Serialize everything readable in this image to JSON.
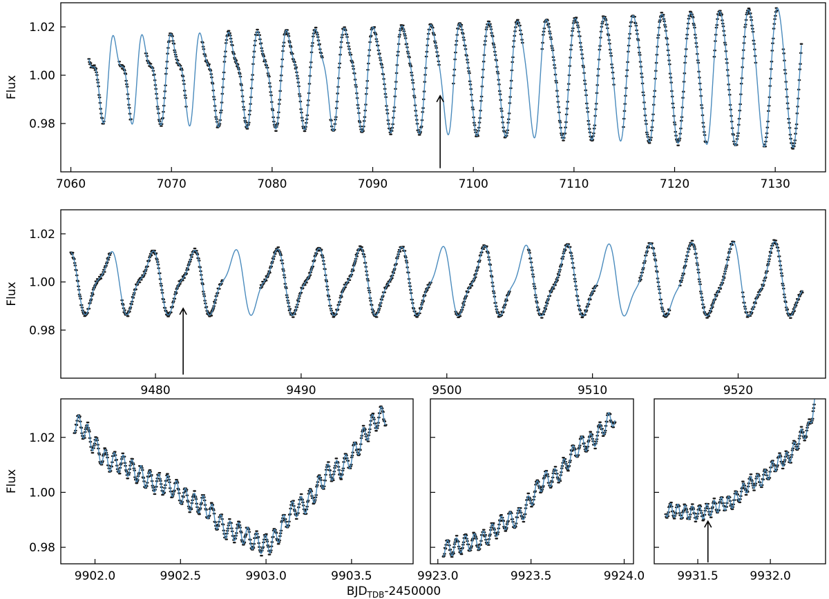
{
  "figure": {
    "shared_xlabel": {
      "main": "BJD",
      "sub": "TDB",
      "suffix": "-2450000"
    },
    "colors": {
      "model_line": "#4a8bbd",
      "data_points": "#1a1a1a",
      "axes": "#000000",
      "arrow": "#000000"
    }
  },
  "chart_data": [
    {
      "type": "line",
      "ylabel": "Flux",
      "xlim": [
        7059,
        7135
      ],
      "ylim": [
        0.96,
        1.03
      ],
      "xticks": [
        7060,
        7070,
        7080,
        7090,
        7100,
        7110,
        7120,
        7130
      ],
      "xticklabels": [
        "7060",
        "7070",
        "7080",
        "7090",
        "7100",
        "7110",
        "7120",
        "7130"
      ],
      "yticks": [
        0.98,
        1.0,
        1.02
      ],
      "yticklabels": [
        "0.98",
        "1.00",
        "1.02"
      ],
      "xtick_label_position": "bottom",
      "show_ytick_labels": true,
      "arrow_x": 7096.7,
      "arrow_y_range": [
        0.9615,
        0.9915
      ],
      "signal": {
        "x_start": 7061.8,
        "x_end": 7132.6,
        "baseline": 1.0,
        "components": [
          {
            "period": 2.86,
            "amplitude_start": 0.014,
            "amplitude_end": 0.029,
            "phase": 0.9
          },
          {
            "period": 1.43,
            "amplitude_start": 0.007,
            "amplitude_end": 0.002,
            "phase": 2.3
          }
        ],
        "data_gaps": [
          [
            7063.3,
            7064.8
          ],
          [
            7066.0,
            7067.4
          ],
          [
            7071.5,
            7073.0
          ],
          [
            7085.0,
            7085.8
          ],
          [
            7096.6,
            7098.0
          ],
          [
            7104.9,
            7106.8
          ],
          [
            7114.0,
            7114.9
          ],
          [
            7123.2,
            7123.9
          ],
          [
            7128.1,
            7128.9
          ],
          [
            7130.2,
            7130.8
          ]
        ]
      }
    },
    {
      "type": "line",
      "ylabel": "Flux",
      "xlim": [
        9473.5,
        9526
      ],
      "ylim": [
        0.96,
        1.03
      ],
      "xticks": [
        9480,
        9490,
        9500,
        9510,
        9520
      ],
      "xticklabels": [
        "9480",
        "9490",
        "9500",
        "9510",
        "9520"
      ],
      "yticks": [
        0.98,
        1.0,
        1.02
      ],
      "yticklabels": [
        "0.98",
        "1.00",
        "1.02"
      ],
      "xtick_label_position": "bottom",
      "show_ytick_labels": true,
      "arrow_x": 9481.9,
      "arrow_y_range": [
        0.9615,
        0.989
      ],
      "signal": {
        "x_start": 9474.2,
        "x_end": 9524.4,
        "baseline": 1.0,
        "components": [
          {
            "period": 2.85,
            "amplitude_start": 0.011,
            "amplitude_end": 0.014,
            "phase": 0.4
          },
          {
            "period": 1.42,
            "amplitude_start": 0.004,
            "amplitude_end": 0.004,
            "phase": 1.1
          }
        ],
        "data_gaps": [
          [
            9476.9,
            9477.7
          ],
          [
            9484.6,
            9487.2
          ],
          [
            9498.9,
            9500.6
          ],
          [
            9504.3,
            9505.6
          ],
          [
            9510.3,
            9513.2
          ],
          [
            9515.3,
            9516.0
          ],
          [
            9519.7,
            9520.3
          ]
        ]
      }
    },
    {
      "type": "line",
      "ylabel": "Flux",
      "xlim": [
        9901.8,
        9903.86
      ],
      "ylim": [
        0.974,
        1.034
      ],
      "xticks": [
        9902.0,
        9902.5,
        9903.0,
        9903.5
      ],
      "xticklabels": [
        "9902.0",
        "9902.5",
        "9903.0",
        "9903.5"
      ],
      "yticks": [
        0.98,
        1.0,
        1.02
      ],
      "yticklabels": [
        "0.98",
        "1.00",
        "1.02"
      ],
      "xtick_label_position": "bottom",
      "show_ytick_labels": true,
      "signal": {
        "x_start": 9901.88,
        "x_end": 9903.7,
        "trend_points": [
          [
            9901.88,
            1.025
          ],
          [
            9902.1,
            1.011
          ],
          [
            9902.4,
            1.003
          ],
          [
            9902.6,
            0.996
          ],
          [
            9902.8,
            0.986
          ],
          [
            9903.0,
            0.981
          ],
          [
            9903.2,
            0.995
          ],
          [
            9903.4,
            1.008
          ],
          [
            9903.7,
            1.028
          ]
        ],
        "ripple_period": 0.052,
        "ripple_amplitude": 0.0035,
        "data_gaps": []
      }
    },
    {
      "type": "line",
      "ylabel": "",
      "xlim": [
        9922.96,
        9924.05
      ],
      "ylim": [
        0.974,
        1.034
      ],
      "xticks": [
        9923.0,
        9923.5,
        9924.0
      ],
      "xticklabels": [
        "9923.0",
        "9923.5",
        "9924.0"
      ],
      "yticks": [
        0.98,
        1.0,
        1.02
      ],
      "yticklabels": [
        "",
        "",
        ""
      ],
      "xtick_label_position": "bottom",
      "show_ytick_labels": false,
      "signal": {
        "x_start": 9923.03,
        "x_end": 9923.95,
        "trend_points": [
          [
            9923.03,
            0.9795
          ],
          [
            9923.2,
            0.982
          ],
          [
            9923.4,
            0.99
          ],
          [
            9923.6,
            1.005
          ],
          [
            9923.8,
            1.018
          ],
          [
            9923.95,
            1.027
          ]
        ],
        "ripple_period": 0.048,
        "ripple_amplitude": 0.003,
        "data_gaps": []
      }
    },
    {
      "type": "line",
      "ylabel": "",
      "xlim": [
        9931.2,
        9932.38
      ],
      "ylim": [
        0.974,
        1.034
      ],
      "xticks": [
        9931.5,
        9932.0
      ],
      "xticklabels": [
        "9931.5",
        "9932.0"
      ],
      "yticks": [
        0.98,
        1.0,
        1.02
      ],
      "yticklabels": [
        "",
        "",
        ""
      ],
      "xtick_label_position": "bottom",
      "show_ytick_labels": false,
      "arrow_x": 9931.57,
      "arrow_y_range": [
        0.9745,
        0.9895
      ],
      "signal": {
        "x_start": 9931.28,
        "x_end": 9932.32,
        "trend_points": [
          [
            9931.28,
            0.9935
          ],
          [
            9931.5,
            0.9925
          ],
          [
            9931.7,
            0.996
          ],
          [
            9931.9,
            1.004
          ],
          [
            9932.1,
            1.012
          ],
          [
            9932.25,
            1.022
          ],
          [
            9932.32,
            1.034
          ]
        ],
        "ripple_period": 0.05,
        "ripple_amplitude": 0.0025,
        "data_gaps": []
      }
    }
  ]
}
